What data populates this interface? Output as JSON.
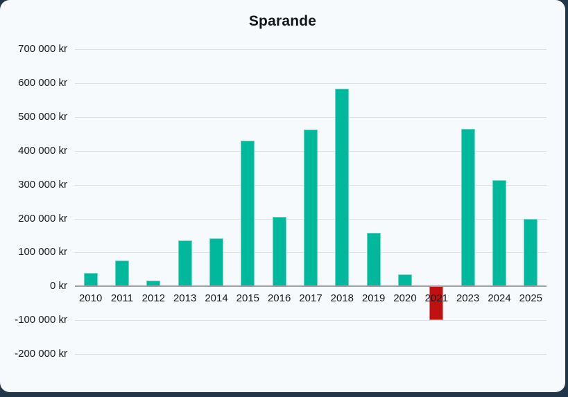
{
  "page": {
    "background_color": "#22364a",
    "card_background_color": "#f7fafc"
  },
  "chart_data": {
    "type": "bar",
    "title": "Sparande",
    "unit": "kr",
    "categories": [
      "2010",
      "2011",
      "2012",
      "2013",
      "2014",
      "2015",
      "2016",
      "2017",
      "2018",
      "2019",
      "2020",
      "2021",
      "2023",
      "2024",
      "2025"
    ],
    "values": [
      40000,
      77000,
      17000,
      135000,
      142000,
      430000,
      205000,
      463000,
      583000,
      158000,
      35000,
      -100000,
      465000,
      313000,
      198000
    ],
    "bar_color": "#00b89c",
    "negative_bar_color": "#c01111",
    "grid": true,
    "grid_color": "#dde1e5",
    "zero_axis_color": "#9aa0a5",
    "legend": "none",
    "ylim": [
      -200000,
      700000
    ],
    "y_ticks": [
      {
        "value": 700000,
        "label": "700 000 kr"
      },
      {
        "value": 600000,
        "label": "600 000 kr"
      },
      {
        "value": 500000,
        "label": "500 000 kr"
      },
      {
        "value": 400000,
        "label": "400 000 kr"
      },
      {
        "value": 300000,
        "label": "300 000 kr"
      },
      {
        "value": 200000,
        "label": "200 000 kr"
      },
      {
        "value": 100000,
        "label": "100 000 kr"
      },
      {
        "value": 0,
        "label": "0 kr"
      },
      {
        "value": -100000,
        "label": "-100 000 kr"
      },
      {
        "value": -200000,
        "label": "-200 000 kr"
      }
    ]
  }
}
